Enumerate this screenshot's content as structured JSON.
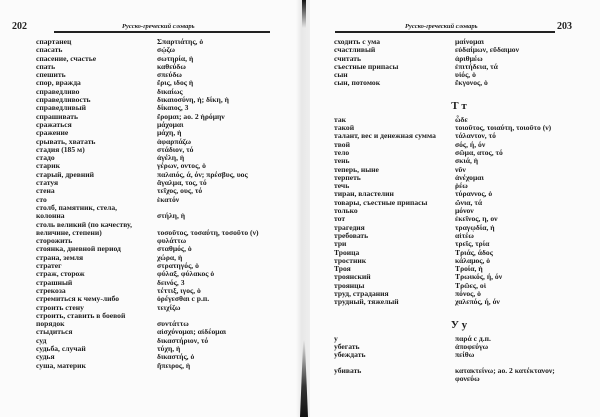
{
  "running_title": "Русско-греческий словарь",
  "left_page": {
    "number": "202",
    "rows": [
      {
        "ru": "спартанец",
        "gr": "Σπαρτιάτης, ὁ"
      },
      {
        "ru": "спасать",
        "gr": "σῴζω"
      },
      {
        "ru": "спасение, счастье",
        "gr": "σωτηρία, ἡ"
      },
      {
        "ru": "спать",
        "gr": "καθεύδω"
      },
      {
        "ru": "спешить",
        "gr": "σπεύδω"
      },
      {
        "ru": "спор, вражда",
        "gr": "ἔρις, ιδος ἡ"
      },
      {
        "ru": "справедливо",
        "gr": "δικαίως"
      },
      {
        "ru": "справедливость",
        "gr": "δικαιοσύνη, ἡ; δίκη, ἡ"
      },
      {
        "ru": "справедливый",
        "gr": "δίκαιος, 3"
      },
      {
        "ru": "спрашивать",
        "gr": "ἔρομαι; ао. 2 ἠρόμην"
      },
      {
        "ru": "сражаться",
        "gr": "μάχομαι"
      },
      {
        "ru": "сражение",
        "gr": "μάχη, ἡ"
      },
      {
        "ru": "срывать, хватать",
        "gr": "ἁφαρπάζω"
      },
      {
        "ru": "стадия (185 м)",
        "gr": "στάδιον, τό"
      },
      {
        "ru": "стадо",
        "gr": "ἀγέλη, ἡ"
      },
      {
        "ru": "старик",
        "gr": "γέρων, οντος, ὁ"
      },
      {
        "ru": "старый, древний",
        "gr": "παλαιός, ά, όν; πρέσβυς, υος"
      },
      {
        "ru": "статуя",
        "gr": "ἄγαλμα, τος, τό"
      },
      {
        "ru": "стена",
        "gr": "τεῖχος, ους, τό"
      },
      {
        "ru": "сто",
        "gr": "ἑκατόν"
      },
      {
        "ru": "столб, памятник, стела,",
        "gr": ""
      },
      {
        "ru": "колонна",
        "gr": "στήλη, ἡ"
      },
      {
        "ru": "столь великий (по качеству,",
        "gr": ""
      },
      {
        "ru": "величине, степени)",
        "gr": "τοσοῦτος, τοσαύτη, τοσοῦτο (ν)"
      },
      {
        "ru": "сторожить",
        "gr": "φυλάττω"
      },
      {
        "ru": "стоянка, дневной период",
        "gr": "σταθμός, ὁ"
      },
      {
        "ru": "страна, земля",
        "gr": "χώρα, ἡ"
      },
      {
        "ru": "стратег",
        "gr": "στρατηγός, ὁ"
      },
      {
        "ru": "страж, сторож",
        "gr": "φύλαξ, φύλακος ὁ"
      },
      {
        "ru": "страшный",
        "gr": "δεινός, 3"
      },
      {
        "ru": "стрекоза",
        "gr": "τέττιξ, ιγος, ὁ"
      },
      {
        "ru": "стремиться к чему-либо",
        "gr": "ὀρέγεσθαι с р.п."
      },
      {
        "ru": "строить стену",
        "gr": "τειχίζω"
      },
      {
        "ru": "строить, ставить в боевой",
        "gr": ""
      },
      {
        "ru": "порядок",
        "gr": "συντάττω"
      },
      {
        "ru": "стыдиться",
        "gr": "αἰσχύνομαι; αἰδέομαι"
      },
      {
        "ru": "суд",
        "gr": "δικαστήριον, τό"
      },
      {
        "ru": "судьба, случай",
        "gr": "τύχη, ἡ"
      },
      {
        "ru": "судья",
        "gr": "δικαστής, ὁ"
      },
      {
        "ru": "суша, материк",
        "gr": "ἤπειρος, ἡ"
      }
    ]
  },
  "right_page": {
    "number": "203",
    "rows": [
      {
        "ru": "сходить с ума",
        "gr": "μαίνομαι"
      },
      {
        "ru": "счастливый",
        "gr": "εὐδαίμων, εὔδαιμον"
      },
      {
        "ru": "считать",
        "gr": "ἀριθμέω"
      },
      {
        "ru": "съестные припасы",
        "gr": "ἐπιτήδεια, τά"
      },
      {
        "ru": "сын",
        "gr": "υἱός, ὁ"
      },
      {
        "ru": "сын, потомок",
        "gr": "ἔκγονος, ὁ"
      },
      {
        "header": "Т т"
      },
      {
        "ru": "так",
        "gr": "ὧδε"
      },
      {
        "ru": "такой",
        "gr": "τοιοῦτος, τοιαύτη, τοιοῦτο (ν)"
      },
      {
        "ru": "талант, вес и денежная сумма",
        "gr": "τάλαντον, τό"
      },
      {
        "ru": "твой",
        "gr": "σός, ή, όν"
      },
      {
        "ru": "тело",
        "gr": "σῶμα, ατος, τό"
      },
      {
        "ru": "тень",
        "gr": "σκιά, ἡ"
      },
      {
        "ru": "теперь, ныне",
        "gr": "νῦν"
      },
      {
        "ru": "терпеть",
        "gr": "ἀνέχομαι"
      },
      {
        "ru": "течь",
        "gr": "ῥέω"
      },
      {
        "ru": "тиран, властелин",
        "gr": "τύραννος, ὁ"
      },
      {
        "ru": "товары, съестные припасы",
        "gr": "ὤνια, τά"
      },
      {
        "ru": "только",
        "gr": "μόνον"
      },
      {
        "ru": "тот",
        "gr": "ἐκεῖνος, η, ον"
      },
      {
        "ru": "трагедия",
        "gr": "τραγῳδία, ἡ"
      },
      {
        "ru": "требовать",
        "gr": "αἰτέω"
      },
      {
        "ru": "три",
        "gr": "τρεῖς, τρία"
      },
      {
        "ru": "Троица",
        "gr": "Τριάς, άδος"
      },
      {
        "ru": "тростник",
        "gr": "κάλαμος, ὁ"
      },
      {
        "ru": "Троя",
        "gr": "Τροία, ἡ"
      },
      {
        "ru": "троянский",
        "gr": "Τρωικός, ή, όν"
      },
      {
        "ru": "троянцы",
        "gr": "Τρῶες, οἱ"
      },
      {
        "ru": "труд, страдания",
        "gr": "πόνος, ὁ"
      },
      {
        "ru": "трудный, тяжелый",
        "gr": "χαλεπός, ή, όν"
      },
      {
        "header": "У у"
      },
      {
        "ru": "у",
        "gr": "παρά с д.п."
      },
      {
        "ru": "убегать",
        "gr": "ἀποφεύγω"
      },
      {
        "ru": "убеждать",
        "gr": "πείθω"
      },
      {
        "blank": true
      },
      {
        "ru": "убивать",
        "gr": "κατακτείνω; ао. 2 κατέκτανον;"
      },
      {
        "ru": "",
        "gr": "φονεύω"
      }
    ]
  }
}
